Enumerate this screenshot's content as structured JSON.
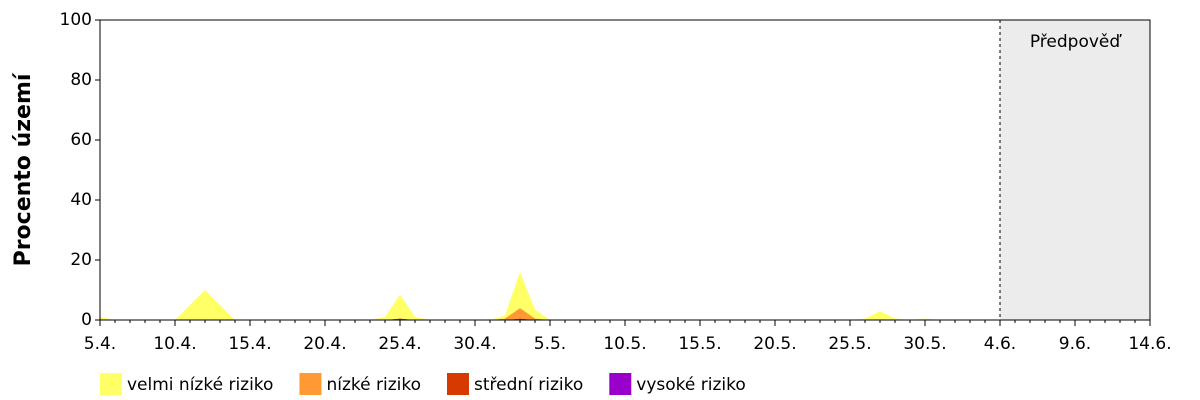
{
  "chart_data": {
    "type": "stacked_area",
    "y_label": "Procento území",
    "categories": [
      "5.4.",
      null,
      null,
      null,
      null,
      "10.4.",
      null,
      null,
      null,
      null,
      "15.4.",
      null,
      null,
      null,
      null,
      "20.4.",
      null,
      null,
      null,
      null,
      "25.4.",
      null,
      null,
      null,
      null,
      "30.4.",
      null,
      null,
      null,
      null,
      "5.5.",
      null,
      null,
      null,
      null,
      "10.5.",
      null,
      null,
      null,
      null,
      "15.5.",
      null,
      null,
      null,
      null,
      "20.5.",
      null,
      null,
      null,
      null,
      "25.5.",
      null,
      null,
      null,
      null,
      "30.5.",
      null,
      null,
      null,
      null,
      "4.6.",
      null,
      null,
      null,
      null,
      "9.6.",
      null,
      null,
      null,
      null,
      "14.6."
    ],
    "series": [
      {
        "name": "velmi nízké riziko",
        "color": "#ffff66",
        "values": [
          1,
          0,
          0,
          0,
          0,
          0,
          5,
          10,
          5,
          0,
          0,
          0,
          0,
          0,
          0,
          0,
          0,
          0,
          0,
          1,
          8,
          1,
          0,
          0,
          0,
          0,
          0,
          1,
          12,
          3,
          0,
          0,
          0,
          0,
          0,
          0,
          0,
          0,
          0,
          0,
          0,
          0,
          0,
          0,
          0,
          0,
          0,
          0,
          0,
          0,
          0,
          0.5,
          3,
          0.5,
          0,
          0.5,
          0,
          0,
          0,
          0,
          0,
          null,
          null,
          null,
          null,
          null,
          null,
          null,
          null,
          null,
          null
        ]
      },
      {
        "name": "nízké riziko",
        "color": "#ff9933",
        "values": [
          0,
          0,
          0,
          0,
          0,
          0,
          0,
          0,
          0,
          0,
          0,
          0,
          0,
          0,
          0,
          0,
          0,
          0,
          0,
          0,
          0,
          0,
          0,
          0,
          0,
          0,
          0,
          0.5,
          3.5,
          0.5,
          0,
          0,
          0,
          0,
          0,
          0,
          0,
          0,
          0,
          0,
          0,
          0,
          0,
          0,
          0,
          0,
          0,
          0,
          0,
          0,
          0,
          0,
          0,
          0,
          0,
          0,
          0,
          0,
          0,
          0,
          0,
          null,
          null,
          null,
          null,
          null,
          null,
          null,
          null,
          null,
          null
        ]
      },
      {
        "name": "střední riziko",
        "color": "#d63a00",
        "values": [
          0,
          0,
          0,
          0,
          0,
          0,
          0,
          0,
          0,
          0,
          0,
          0,
          0,
          0,
          0,
          0,
          0,
          0,
          0,
          0,
          0.5,
          0,
          0,
          0,
          0,
          0,
          0,
          0,
          0.5,
          0,
          0,
          0,
          0,
          0,
          0,
          0,
          0,
          0,
          0,
          0,
          0,
          0,
          0,
          0,
          0,
          0,
          0,
          0,
          0,
          0,
          0,
          0,
          0,
          0,
          0,
          0,
          0,
          0,
          0,
          0,
          0,
          null,
          null,
          null,
          null,
          null,
          null,
          null,
          null,
          null,
          null
        ]
      },
      {
        "name": "vysoké riziko",
        "color": "#9900cc",
        "values": [
          0,
          0,
          0,
          0,
          0,
          0,
          0,
          0,
          0,
          0,
          0,
          0,
          0,
          0,
          0,
          0,
          0,
          0,
          0,
          0,
          0,
          0,
          0,
          0,
          0,
          0,
          0,
          0,
          0,
          0,
          0,
          0,
          0,
          0,
          0,
          0,
          0,
          0,
          0,
          0,
          0,
          0,
          0,
          0,
          0,
          0,
          0,
          0,
          0,
          0,
          0,
          0,
          0,
          0,
          0,
          0,
          0,
          0,
          0,
          0,
          0,
          null,
          null,
          null,
          null,
          null,
          null,
          null,
          null,
          null,
          null
        ]
      }
    ],
    "ylim": [
      0,
      100
    ],
    "yticks": [
      0,
      20,
      40,
      60,
      80,
      100
    ],
    "forecast": {
      "label": "Předpověď",
      "start": "4.6."
    }
  }
}
